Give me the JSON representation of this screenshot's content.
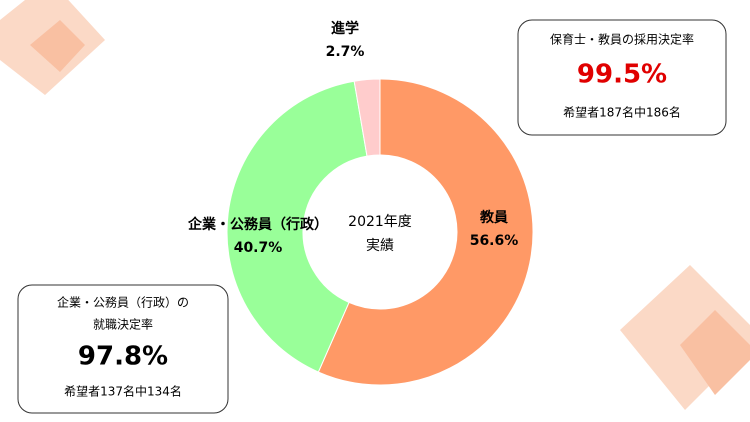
{
  "chart_data": {
    "type": "donut",
    "categories": [
      "教員",
      "企業・公務員（行政）",
      "進学"
    ],
    "values": [
      56.6,
      40.7,
      2.7
    ],
    "value_labels": [
      "56.6%",
      "40.7%",
      "2.7%"
    ],
    "colors": [
      "#ff9966",
      "#99ff99",
      "#ffcccc"
    ],
    "center_text": [
      "2021年度",
      "実績"
    ]
  },
  "annotations": [
    {
      "lines": [
        "保育士・教員の採用決定率"
      ],
      "value": "99.5%",
      "value_color": "#e00000",
      "note": "希望者187名中186名"
    },
    {
      "lines": [
        "企業・公務員（行政）の",
        "就職決定率"
      ],
      "value": "97.8%",
      "value_color": "#000000",
      "note": "希望者137名中134名"
    }
  ]
}
